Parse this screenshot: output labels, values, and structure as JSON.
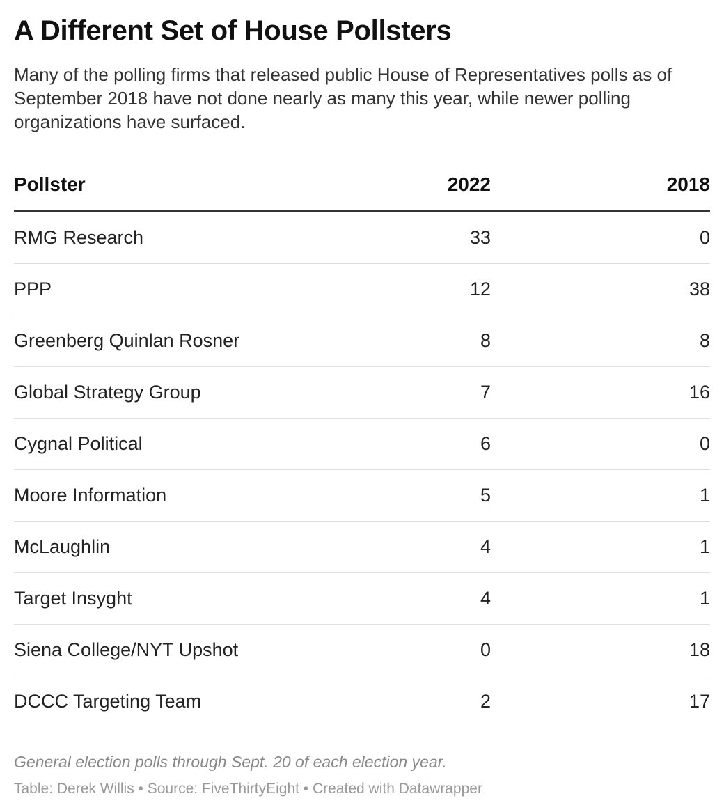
{
  "chart_data": {
    "type": "table",
    "title": "A Different Set of House Pollsters",
    "subtitle": "Many of the polling firms that released public House of Representatives polls as of September 2018 have not done nearly as many this year, while newer polling organizations have surfaced.",
    "columns": [
      "Pollster",
      "2022",
      "2018"
    ],
    "rows": [
      {
        "pollster": "RMG Research",
        "y2022": "33",
        "y2018": "0"
      },
      {
        "pollster": "PPP",
        "y2022": "12",
        "y2018": "38"
      },
      {
        "pollster": "Greenberg Quinlan Rosner",
        "y2022": "8",
        "y2018": "8"
      },
      {
        "pollster": "Global Strategy Group",
        "y2022": "7",
        "y2018": "16"
      },
      {
        "pollster": "Cygnal Political",
        "y2022": "6",
        "y2018": "0"
      },
      {
        "pollster": "Moore Information",
        "y2022": "5",
        "y2018": "1"
      },
      {
        "pollster": "McLaughlin",
        "y2022": "4",
        "y2018": "1"
      },
      {
        "pollster": "Target Insyght",
        "y2022": "4",
        "y2018": "1"
      },
      {
        "pollster": "Siena College/NYT Upshot",
        "y2022": "0",
        "y2018": "18"
      },
      {
        "pollster": "DCCC Targeting Team",
        "y2022": "2",
        "y2018": "17"
      }
    ],
    "notes": "General election polls through Sept. 20 of each election year.",
    "credits": "Table: Derek Willis • Source: FiveThirtyEight • Created with Datawrapper"
  }
}
